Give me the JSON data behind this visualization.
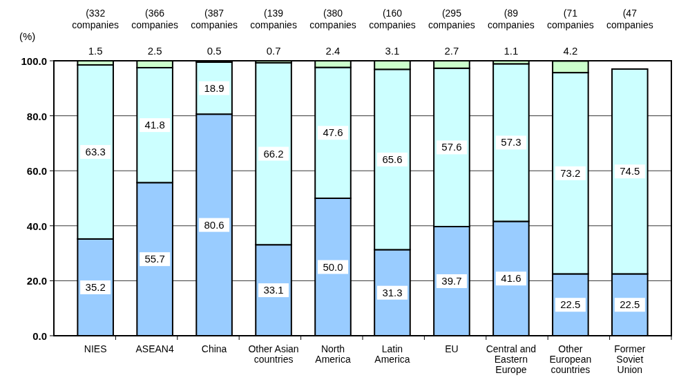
{
  "chart_data": {
    "type": "bar",
    "stacked": true,
    "ylabel": "(%)",
    "categories": [
      "NIES",
      "ASEAN4",
      "China",
      "Other Asian countries",
      "North America",
      "Latin America",
      "EU",
      "Central and Eastern Europe",
      "Other European countries",
      "Former Soviet Union"
    ],
    "series": [
      {
        "color": "#99ccff",
        "values": [
          35.2,
          55.7,
          80.6,
          33.1,
          50.0,
          31.3,
          39.7,
          41.6,
          22.5,
          22.5
        ],
        "value_labels": [
          "35.2",
          "55.7",
          "80.6",
          "33.1",
          "50.0",
          "31.3",
          "39.7",
          "41.6",
          "22.5",
          "22.5"
        ]
      },
      {
        "color": "#ccffff",
        "values": [
          63.3,
          41.8,
          18.9,
          66.2,
          47.6,
          65.6,
          57.6,
          57.3,
          73.2,
          74.5
        ],
        "value_labels": [
          "63.3",
          "41.8",
          "18.9",
          "66.2",
          "47.6",
          "65.6",
          "57.6",
          "57.3",
          "73.2",
          "74.5"
        ]
      },
      {
        "color": "#ccffcc",
        "values": [
          1.5,
          2.5,
          0.5,
          0.7,
          2.4,
          3.1,
          2.7,
          1.1,
          4.2,
          null
        ],
        "value_labels": [
          "1.5",
          "2.5",
          "0.5",
          "0.7",
          "2.4",
          "3.1",
          "2.7",
          "1.1",
          "4.2",
          null
        ]
      }
    ],
    "ylim": [
      0,
      100
    ],
    "yticks": [
      {
        "value": 0,
        "label": "0.0"
      },
      {
        "value": 20,
        "label": "20.0"
      },
      {
        "value": 40,
        "label": "40.0"
      },
      {
        "value": 60,
        "label": "60.0"
      },
      {
        "value": 80,
        "label": "80.0"
      },
      {
        "value": 100,
        "label": "100.0"
      }
    ],
    "grid": "y",
    "annotations": [
      "(332 companies",
      "(366 companies",
      "(387 companies",
      "(139 companies",
      "(380 companies",
      "(160 companies",
      "(295 companies",
      "(89 companies",
      "(71 companies",
      "(47 companies"
    ]
  }
}
